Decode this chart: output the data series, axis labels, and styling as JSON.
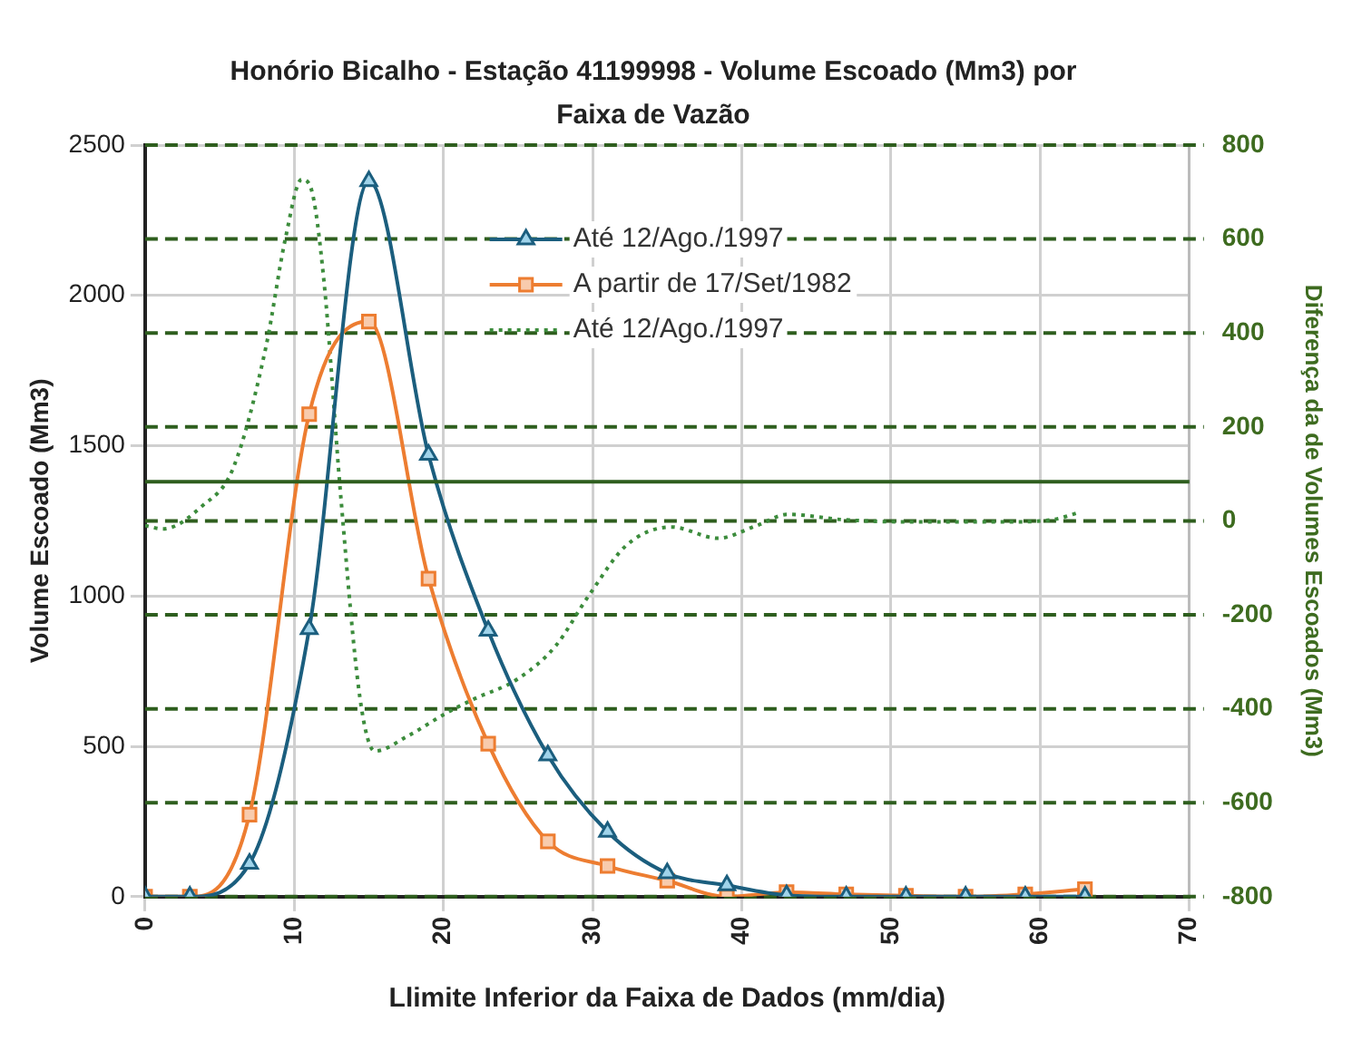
{
  "chart_data": {
    "type": "line",
    "title": "Honório Bicalho -  Estação 41199998 - Volume Escoado (Mm3) por Faixa de Vazão",
    "xlabel": "Llimite Inferior da Faixa de Dados (mm/dia)",
    "ylabel": "Volume Escoado (Mm3)",
    "y2label": "Diferença da de Volumes Escoados (Mm3)",
    "x": [
      0,
      3,
      7,
      11,
      15,
      19,
      23,
      27,
      31,
      35,
      39,
      43,
      47,
      51,
      55,
      59,
      63
    ],
    "xlim": [
      0,
      70
    ],
    "xticks": [
      0,
      10,
      20,
      30,
      40,
      50,
      60,
      70
    ],
    "ylim": [
      0,
      2500
    ],
    "yticks": [
      0,
      500,
      1000,
      1500,
      2000,
      2500
    ],
    "y2lim": [
      -800,
      800
    ],
    "y2ticks": [
      -800,
      -600,
      -400,
      -200,
      0,
      200,
      400,
      600,
      800
    ],
    "grid": true,
    "legend": "top right",
    "ref_lines": [
      {
        "axis": "y",
        "value": 1380,
        "color": "#2e5e1e",
        "line_style": "solid"
      }
    ],
    "series": [
      {
        "name": "Até 12/Ago./1997",
        "color": "#1b5e7e",
        "marker": "triangle",
        "values": [
          0,
          0,
          110,
          890,
          2380,
          1470,
          885,
          470,
          216,
          78,
          38,
          5,
          0,
          0,
          0,
          0,
          0
        ]
      },
      {
        "name": "A partir de 17/Set/1982",
        "color": "#ed7d31",
        "marker": "square",
        "values": [
          0,
          0,
          273,
          1605,
          1913,
          1058,
          509,
          184,
          102,
          53,
          0,
          15,
          8,
          3,
          0,
          8,
          25
        ]
      },
      {
        "name": "Até 12/Ago./1997",
        "color": "#3c8c3c",
        "marker": "none",
        "line_style": "dotted",
        "axis": "y2",
        "x": [
          0,
          1.2,
          3.8,
          5.9,
          8.1,
          9.4,
          10.5,
          11.1,
          12,
          13.1,
          14.4,
          15.4,
          17.6,
          20.2,
          22,
          25,
          27.5,
          29.7,
          32.3,
          35.3,
          38.4,
          41,
          43.1,
          46.6,
          50.9,
          57.9,
          60.9,
          62.6
        ],
        "values": [
          -10,
          -17,
          31,
          112,
          370,
          600,
          727,
          710,
          507,
          59,
          -376,
          -490,
          -458,
          -409,
          -380,
          -336,
          -267,
          -161,
          -51,
          -13,
          -37,
          -10,
          14,
          3,
          -2,
          -2,
          3,
          18
        ]
      }
    ]
  }
}
